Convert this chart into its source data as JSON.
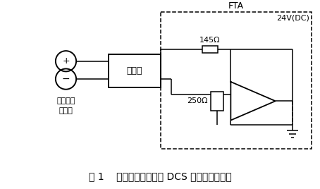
{
  "title": "图 1    智能压力变送器与 DCS 现场的连接回路",
  "title_fontsize": 10,
  "bg_color": "#ffffff",
  "line_color": "#000000",
  "fta_label": "FTA",
  "v24_label": "24V(DC)",
  "r145_label": "145Ω",
  "r250_label": "250Ω",
  "sensor_label": "智能压力\n变送器",
  "barrier_label": "安全栅",
  "lw": 1.1
}
